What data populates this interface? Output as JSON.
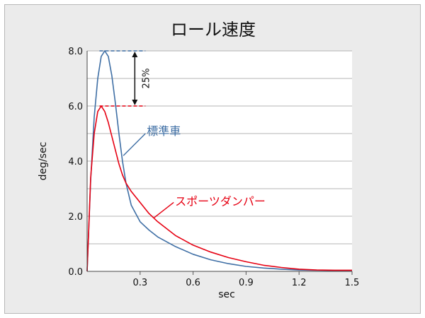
{
  "chart_data": {
    "type": "line",
    "title": "ロール速度",
    "xlabel": "sec",
    "ylabel": "deg/sec",
    "xlim": [
      0,
      1.5
    ],
    "ylim": [
      0,
      8.0
    ],
    "x_ticks": [
      "0.3",
      "0.6",
      "0.9",
      "1.2",
      "1.5"
    ],
    "x_tick_values": [
      0.3,
      0.6,
      0.9,
      1.2,
      1.5
    ],
    "y_ticks": [
      "0.0",
      "2.0",
      "4.0",
      "6.0",
      "8.0"
    ],
    "y_tick_values": [
      0,
      2,
      4,
      6,
      8
    ],
    "grid": true,
    "series": [
      {
        "name": "標準車",
        "color": "#3f6fa5",
        "x": [
          0,
          0.02,
          0.04,
          0.06,
          0.08,
          0.1,
          0.12,
          0.14,
          0.16,
          0.18,
          0.2,
          0.22,
          0.25,
          0.3,
          0.35,
          0.4,
          0.5,
          0.6,
          0.7,
          0.8,
          0.9,
          1.0,
          1.1,
          1.2,
          1.3,
          1.4,
          1.5
        ],
        "values": [
          0,
          3.3,
          5.6,
          7.0,
          7.8,
          8.0,
          7.8,
          7.1,
          6.1,
          5.0,
          4.0,
          3.2,
          2.4,
          1.8,
          1.5,
          1.25,
          0.9,
          0.62,
          0.42,
          0.28,
          0.18,
          0.12,
          0.08,
          0.05,
          0.04,
          0.03,
          0.03
        ]
      },
      {
        "name": "スポーツダンパー",
        "color": "#e60012",
        "x": [
          0,
          0.02,
          0.04,
          0.06,
          0.08,
          0.1,
          0.12,
          0.14,
          0.16,
          0.18,
          0.2,
          0.22,
          0.25,
          0.3,
          0.35,
          0.4,
          0.5,
          0.6,
          0.7,
          0.8,
          0.9,
          1.0,
          1.1,
          1.2,
          1.3,
          1.4,
          1.5
        ],
        "values": [
          0,
          3.4,
          5.0,
          5.8,
          6.0,
          5.8,
          5.4,
          4.9,
          4.4,
          3.9,
          3.5,
          3.2,
          2.9,
          2.5,
          2.1,
          1.8,
          1.3,
          0.95,
          0.7,
          0.5,
          0.35,
          0.22,
          0.14,
          0.08,
          0.05,
          0.04,
          0.04
        ]
      }
    ],
    "reference_lines": [
      {
        "value": 8.0,
        "color": "#3f6fa5"
      },
      {
        "value": 6.0,
        "color": "#e60012"
      }
    ],
    "annotations": {
      "difference_label": "25%",
      "standard_label": "標準車",
      "sport_label": "スポーツダンパー"
    }
  }
}
